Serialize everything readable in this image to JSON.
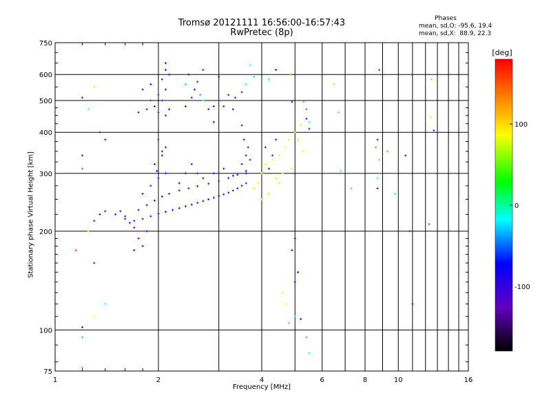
{
  "chart_data": {
    "type": "scatter",
    "title": "Tromsø 20121111 16:56:00-16:57:43",
    "subtitle": "RwPretec (8p)",
    "xlabel": "Frequency [MHz]",
    "ylabel": "Stationary phase Virtual Height [km]",
    "xscale": "log",
    "yscale": "log",
    "xlim": [
      1,
      16
    ],
    "ylim": [
      75,
      750
    ],
    "x_ticks": [
      1,
      2,
      4,
      6,
      8,
      10,
      16
    ],
    "x_tick_labels": [
      "1",
      "2",
      "4",
      "6",
      "8",
      "10",
      "16"
    ],
    "y_ticks": [
      75,
      100,
      200,
      300,
      400,
      500,
      600,
      750
    ],
    "y_tick_labels": [
      "75",
      "100",
      "200",
      "300",
      "400",
      "500",
      "600",
      "750"
    ],
    "grid": true,
    "stats": {
      "heading": "Phases",
      "o_line": "mean, sd,O: -95.6, 19.4",
      "x_line": "mean, sd,X:  88.9, 22.3"
    },
    "colorbar": {
      "label": "[deg]",
      "range": [
        -180,
        180
      ],
      "ticks": [
        100,
        0,
        -100
      ],
      "tick_labels": [
        "100",
        "0",
        "-100"
      ],
      "colormap": "rainbow"
    },
    "series": [
      {
        "points": [
          [
            1.7,
            215,
            -110
          ],
          [
            1.8,
            218,
            -105
          ],
          [
            1.9,
            222,
            -108
          ],
          [
            2.0,
            226,
            -100
          ],
          [
            2.1,
            229,
            -112
          ],
          [
            2.2,
            232,
            -98
          ],
          [
            2.3,
            235,
            -106
          ],
          [
            2.4,
            238,
            -102
          ],
          [
            2.5,
            241,
            -110
          ],
          [
            2.6,
            244,
            -95
          ],
          [
            2.7,
            247,
            -104
          ],
          [
            2.8,
            250,
            -100
          ],
          [
            2.9,
            253,
            -108
          ],
          [
            3.0,
            256,
            -98
          ],
          [
            3.1,
            259,
            -103
          ],
          [
            3.2,
            262,
            -110
          ],
          [
            3.3,
            266,
            -97
          ],
          [
            3.4,
            270,
            -105
          ],
          [
            3.5,
            275,
            -100
          ],
          [
            3.6,
            280,
            -95
          ],
          [
            1.6,
            222,
            -112
          ],
          [
            1.75,
            232,
            -100
          ],
          [
            1.85,
            240,
            -108
          ],
          [
            1.95,
            248,
            -96
          ],
          [
            2.05,
            255,
            -104
          ],
          [
            2.15,
            260,
            -110
          ],
          [
            2.3,
            266,
            -98
          ],
          [
            2.45,
            270,
            -106
          ],
          [
            2.6,
            274,
            -100
          ],
          [
            2.8,
            279,
            -95
          ],
          [
            3.0,
            284,
            -108
          ],
          [
            3.2,
            290,
            -102
          ],
          [
            3.4,
            297,
            -99
          ],
          [
            3.6,
            305,
            -104
          ],
          [
            1.8,
            260,
            -105
          ],
          [
            1.9,
            275,
            -110
          ],
          [
            2.0,
            290,
            -100
          ],
          [
            2.1,
            300,
            -95
          ],
          [
            1.95,
            320,
            -108
          ],
          [
            2.05,
            340,
            -103
          ],
          [
            2.1,
            360,
            -106
          ],
          [
            2.0,
            380,
            -110
          ],
          [
            2.05,
            350,
            -98
          ],
          [
            1.98,
            305,
            -104
          ],
          [
            2.3,
            280,
            -100
          ],
          [
            2.4,
            300,
            -106
          ],
          [
            2.5,
            320,
            -95
          ],
          [
            2.6,
            300,
            -110
          ],
          [
            2.7,
            290,
            -102
          ],
          [
            2.9,
            300,
            -98
          ],
          [
            3.1,
            310,
            -105
          ],
          [
            3.3,
            295,
            -100
          ],
          [
            3.5,
            320,
            -108
          ],
          [
            3.6,
            340,
            -97
          ],
          [
            3.65,
            360,
            -104
          ],
          [
            3.55,
            380,
            -100
          ],
          [
            3.6,
            300,
            -110
          ],
          [
            3.7,
            330,
            -95
          ],
          [
            2.0,
            460,
            -108
          ],
          [
            2.05,
            500,
            -100
          ],
          [
            2.1,
            540,
            -105
          ],
          [
            2.05,
            580,
            -95
          ],
          [
            2.1,
            620,
            -110
          ],
          [
            1.95,
            480,
            -102
          ],
          [
            2.15,
            470,
            -98
          ],
          [
            2.0,
            520,
            -106
          ],
          [
            2.1,
            450,
            -104
          ],
          [
            2.15,
            600,
            -100
          ],
          [
            1.9,
            500,
            -110
          ],
          [
            1.85,
            470,
            -104
          ],
          [
            1.8,
            540,
            -100
          ],
          [
            1.75,
            460,
            -108
          ],
          [
            1.9,
            560,
            -96
          ],
          [
            2.4,
            480,
            -105
          ],
          [
            2.5,
            510,
            -98
          ],
          [
            2.55,
            540,
            -108
          ],
          [
            2.6,
            570,
            -100
          ],
          [
            2.45,
            600,
            -104
          ],
          [
            2.7,
            500,
            -20
          ],
          [
            2.8,
            470,
            -110
          ],
          [
            2.9,
            480,
            -102
          ],
          [
            3.0,
            500,
            -95
          ],
          [
            3.2,
            520,
            -108
          ],
          [
            3.35,
            510,
            -100
          ],
          [
            3.5,
            530,
            -106
          ],
          [
            3.6,
            560,
            -20
          ],
          [
            2.65,
            520,
            -50
          ],
          [
            1.3,
            215,
            -110
          ],
          [
            1.35,
            225,
            -105
          ],
          [
            1.4,
            230,
            -100
          ],
          [
            1.5,
            225,
            -108
          ],
          [
            1.55,
            230,
            -98
          ],
          [
            1.6,
            218,
            -106
          ],
          [
            1.65,
            212,
            -102
          ],
          [
            1.7,
            205,
            -110
          ],
          [
            1.75,
            190,
            -105
          ],
          [
            1.8,
            180,
            -100
          ],
          [
            1.7,
            175,
            -108
          ],
          [
            1.85,
            200,
            -98
          ],
          [
            3.8,
            270,
            80
          ],
          [
            3.9,
            280,
            95
          ],
          [
            4.0,
            300,
            85
          ],
          [
            4.1,
            320,
            90
          ],
          [
            4.3,
            330,
            100
          ],
          [
            4.5,
            340,
            88
          ],
          [
            4.7,
            360,
            92
          ],
          [
            4.8,
            380,
            96
          ],
          [
            5.0,
            400,
            85
          ],
          [
            5.2,
            420,
            90
          ],
          [
            4.6,
            300,
            100
          ],
          [
            4.4,
            290,
            95
          ],
          [
            4.9,
            310,
            88
          ],
          [
            5.3,
            350,
            92
          ],
          [
            4.2,
            260,
            90
          ],
          [
            4.5,
            280,
            86
          ],
          [
            5.1,
            380,
            120
          ],
          [
            4.0,
            250,
            60
          ],
          [
            4.2,
            310,
            -100
          ],
          [
            4.3,
            340,
            -95
          ],
          [
            4.1,
            360,
            -105
          ],
          [
            4.4,
            380,
            -100
          ],
          [
            5.5,
            410,
            -110
          ],
          [
            5.4,
            440,
            -108
          ],
          [
            5.4,
            470,
            -60
          ],
          [
            5.3,
            495,
            40
          ],
          [
            5.5,
            430,
            -20
          ],
          [
            4.85,
            600,
            130
          ],
          [
            4.9,
            495,
            -100
          ],
          [
            4.2,
            580,
            -30
          ],
          [
            4.4,
            620,
            -100
          ],
          [
            5.0,
            190,
            -110
          ],
          [
            4.9,
            175,
            -105
          ],
          [
            5.1,
            150,
            -100
          ],
          [
            5.0,
            140,
            -95
          ],
          [
            4.7,
            120,
            100
          ],
          [
            5.0,
            110,
            -30
          ],
          [
            5.2,
            108,
            -100
          ],
          [
            5.4,
            95,
            150
          ],
          [
            5.5,
            85,
            -30
          ],
          [
            4.6,
            130,
            110
          ],
          [
            4.8,
            105,
            40
          ],
          [
            1.2,
            510,
            -110
          ],
          [
            1.25,
            470,
            -20
          ],
          [
            1.3,
            550,
            110
          ],
          [
            1.35,
            400,
            -120
          ],
          [
            1.4,
            380,
            -100
          ],
          [
            1.2,
            340,
            -110
          ],
          [
            1.2,
            310,
            -60
          ],
          [
            1.25,
            200,
            110
          ],
          [
            1.15,
            175,
            160
          ],
          [
            1.3,
            160,
            -110
          ],
          [
            1.4,
            120,
            -20
          ],
          [
            1.3,
            110,
            100
          ],
          [
            1.2,
            102,
            -105
          ],
          [
            1.2,
            95,
            -40
          ],
          [
            1.2,
            77,
            -20
          ],
          [
            6.5,
            560,
            120
          ],
          [
            6.7,
            460,
            130
          ],
          [
            6.8,
            305,
            -20
          ],
          [
            7.3,
            270,
            130
          ],
          [
            8.6,
            360,
            150
          ],
          [
            8.7,
            380,
            -110
          ],
          [
            8.8,
            330,
            130
          ],
          [
            8.7,
            290,
            -20
          ],
          [
            8.7,
            270,
            -110
          ],
          [
            8.8,
            620,
            170
          ],
          [
            9.3,
            350,
            140
          ],
          [
            9.8,
            260,
            -30
          ],
          [
            10.5,
            340,
            -100
          ],
          [
            10.8,
            200,
            -110
          ],
          [
            11.0,
            120,
            -100
          ],
          [
            12.3,
            210,
            170
          ],
          [
            12.4,
            445,
            110
          ],
          [
            12.5,
            580,
            120
          ],
          [
            12.7,
            405,
            -120
          ],
          [
            3.0,
            590,
            -110
          ],
          [
            3.1,
            480,
            -95
          ],
          [
            2.9,
            430,
            -100
          ],
          [
            3.3,
            470,
            -108
          ],
          [
            3.5,
            420,
            -100
          ],
          [
            2.4,
            560,
            -30
          ],
          [
            2.7,
            620,
            -105
          ],
          [
            3.8,
            590,
            -40
          ],
          [
            3.7,
            640,
            -20
          ],
          [
            2.1,
            650,
            -100
          ]
        ]
      }
    ]
  }
}
